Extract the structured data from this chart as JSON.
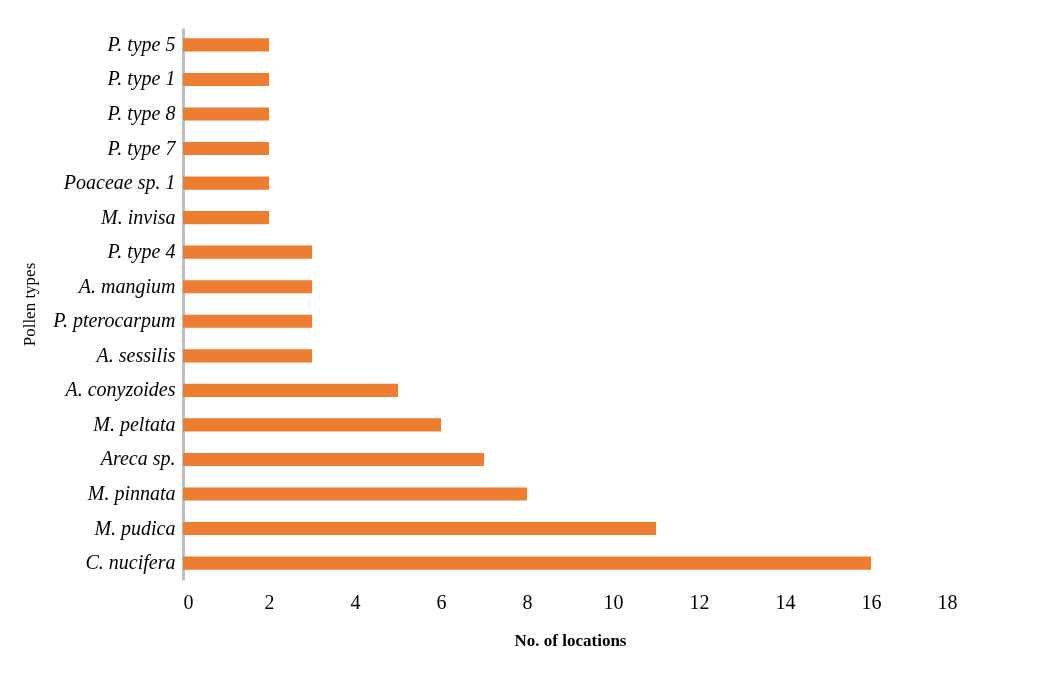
{
  "chart_data": {
    "type": "bar",
    "orientation": "horizontal",
    "xlabel": "No. of locations",
    "ylabel": "Pollen types",
    "categories": [
      "P. type 5",
      "P. type 1",
      "P. type 8",
      "P. type 7",
      "Poaceae sp. 1",
      "M. invisa",
      "P. type 4",
      "A. mangium",
      "P. pterocarpum",
      "A. sessilis",
      "A. conyzoides",
      "M. peltata",
      "Areca sp.",
      "M. pinnata",
      "M. pudica",
      "C. nucifera"
    ],
    "values": [
      2,
      2,
      2,
      2,
      2,
      2,
      3,
      3,
      3,
      3,
      5,
      6,
      7,
      8,
      11,
      16
    ],
    "color": "#ed7d31",
    "xlim": [
      0,
      18
    ],
    "xticks": [
      0,
      2,
      4,
      6,
      8,
      10,
      12,
      14,
      16,
      18
    ],
    "grid": false
  }
}
